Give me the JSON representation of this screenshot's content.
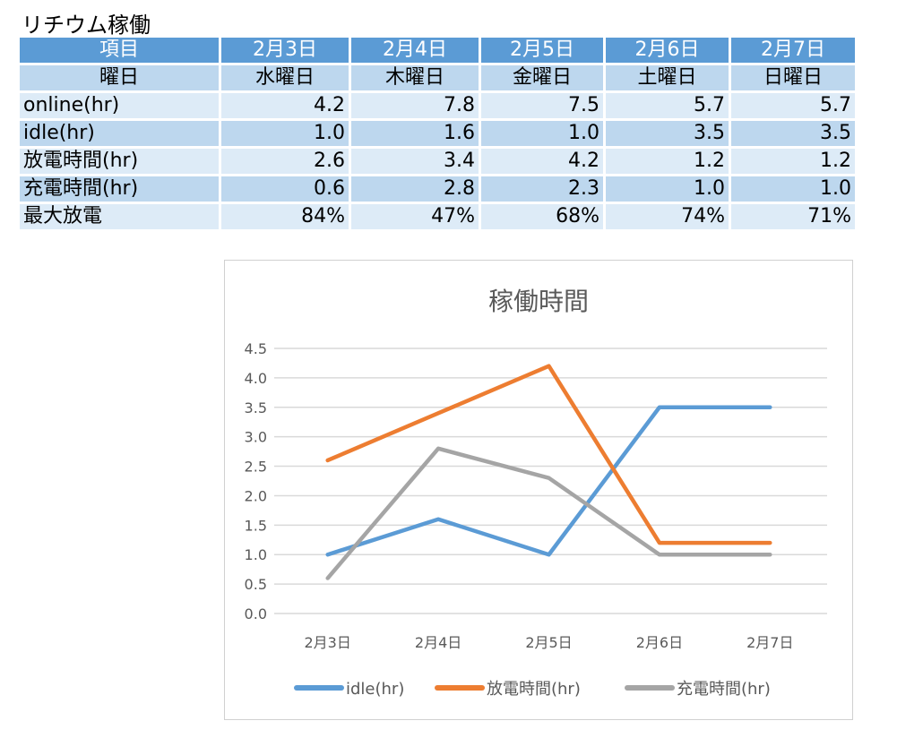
{
  "sheet_title": "リチウム稼働",
  "table": {
    "header": [
      "項目",
      "2月3日",
      "2月4日",
      "2月5日",
      "2月6日",
      "2月7日"
    ],
    "rows": [
      [
        "曜日",
        "水曜日",
        "木曜日",
        "金曜日",
        "土曜日",
        "日曜日"
      ],
      [
        "online(hr)",
        "4.2",
        "7.8",
        "7.5",
        "5.7",
        "5.7"
      ],
      [
        "idle(hr)",
        "1.0",
        "1.6",
        "1.0",
        "3.5",
        "3.5"
      ],
      [
        "放電時間(hr)",
        "2.6",
        "3.4",
        "4.2",
        "1.2",
        "1.2"
      ],
      [
        "充電時間(hr)",
        "0.6",
        "2.8",
        "2.3",
        "1.0",
        "1.0"
      ],
      [
        "最大放電",
        "84%",
        "47%",
        "68%",
        "74%",
        "71%"
      ]
    ]
  },
  "chart_data": {
    "type": "line",
    "title": "稼働時間",
    "categories": [
      "2月3日",
      "2月4日",
      "2月5日",
      "2月6日",
      "2月7日"
    ],
    "ylim": [
      0,
      4.5
    ],
    "yticks": [
      "0.0",
      "0.5",
      "1.0",
      "1.5",
      "2.0",
      "2.5",
      "3.0",
      "3.5",
      "4.0",
      "4.5"
    ],
    "grid": true,
    "legend": "bottom",
    "series": [
      {
        "name": "idle(hr)",
        "color": "#5B9BD5",
        "values": [
          1.0,
          1.6,
          1.0,
          3.5,
          3.5
        ]
      },
      {
        "name": "放電時間(hr)",
        "color": "#ED7D31",
        "values": [
          2.6,
          3.4,
          4.2,
          1.2,
          1.2
        ]
      },
      {
        "name": "充電時間(hr)",
        "color": "#A5A5A5",
        "values": [
          0.6,
          2.8,
          2.3,
          1.0,
          1.0
        ]
      }
    ]
  }
}
